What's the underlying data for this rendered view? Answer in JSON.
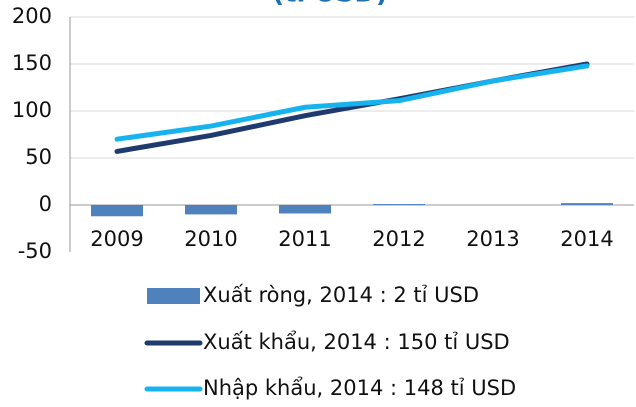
{
  "chart_data": {
    "type": "bar_line",
    "title": "(tỉ USD)",
    "categories": [
      "2009",
      "2010",
      "2011",
      "2012",
      "2013",
      "2014"
    ],
    "series": [
      {
        "name": "Xuất ròng, 2014 : 2 tỉ USD",
        "type": "bar",
        "color": "#4f81bd",
        "values": [
          -12,
          -10,
          -9,
          1,
          0,
          2
        ]
      },
      {
        "name": "Xuất khẩu, 2014 : 150 tỉ USD",
        "type": "line",
        "color": "#1f3a6e",
        "values": [
          57,
          74,
          95,
          113,
          132,
          150
        ]
      },
      {
        "name": "Nhập khẩu, 2014 : 148 tỉ USD",
        "type": "line",
        "color": "#17b3ef",
        "values": [
          70,
          84,
          104,
          111,
          132,
          148
        ]
      }
    ],
    "ylim": [
      -50,
      200
    ],
    "yticks": [
      -50,
      0,
      50,
      100,
      150,
      200
    ],
    "grid": true
  }
}
